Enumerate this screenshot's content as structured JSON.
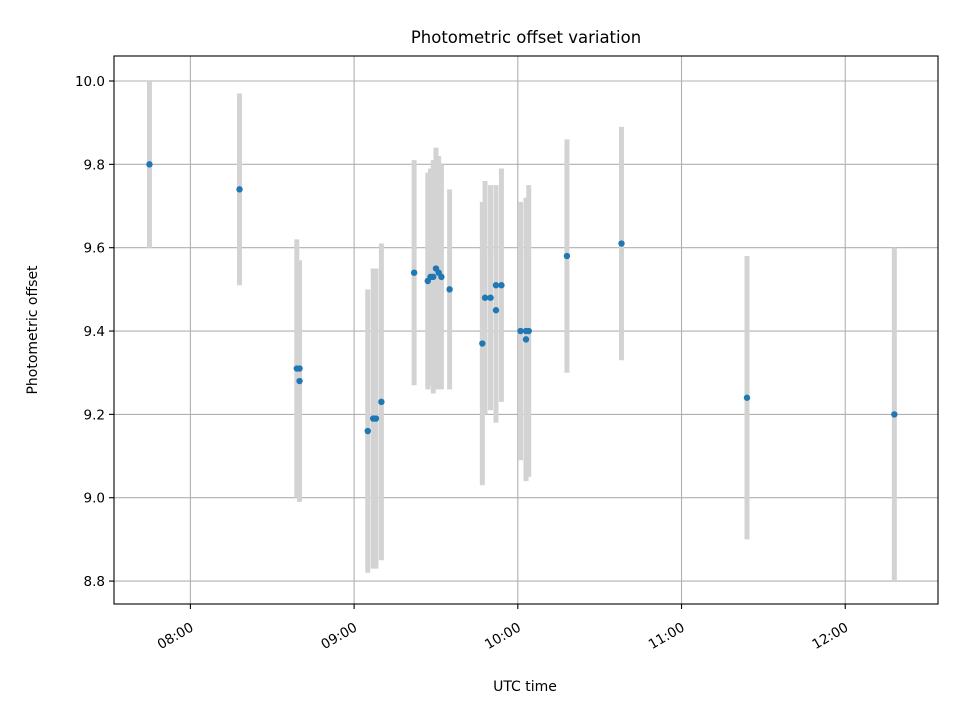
{
  "chart_data": {
    "type": "scatter",
    "title": "Photometric offset variation",
    "xlabel": "UTC time",
    "ylabel": "Photometric offset",
    "grid": true,
    "x_unit": "UTC time (HH:MM)",
    "xlim": [
      "07:32",
      "12:34"
    ],
    "ylim": [
      8.745,
      10.06
    ],
    "x_ticks": [
      "08:00",
      "09:00",
      "10:00",
      "11:00",
      "12:00"
    ],
    "y_ticks": [
      8.8,
      9.0,
      9.2,
      9.4,
      9.6,
      9.8,
      10.0
    ],
    "y_tick_labels": [
      "8.8",
      "9.0",
      "9.2",
      "9.4",
      "9.6",
      "9.8",
      "10.0"
    ],
    "point_color": "#1f77b4",
    "errorbar_color": "#d3d3d3",
    "points": [
      {
        "x": "07:45",
        "y": 9.8,
        "err": 0.2
      },
      {
        "x": "08:18",
        "y": 9.74,
        "err": 0.23
      },
      {
        "x": "08:39",
        "y": 9.31,
        "err": 0.31
      },
      {
        "x": "08:40",
        "y": 9.31,
        "err": 0.25
      },
      {
        "x": "08:40",
        "y": 9.28,
        "err": 0.29
      },
      {
        "x": "09:05",
        "y": 9.16,
        "err": 0.34
      },
      {
        "x": "09:07",
        "y": 9.19,
        "err": 0.36
      },
      {
        "x": "09:08",
        "y": 9.19,
        "err": 0.36
      },
      {
        "x": "09:10",
        "y": 9.23,
        "err": 0.38
      },
      {
        "x": "09:22",
        "y": 9.54,
        "err": 0.27
      },
      {
        "x": "09:27",
        "y": 9.52,
        "err": 0.26
      },
      {
        "x": "09:28",
        "y": 9.53,
        "err": 0.26
      },
      {
        "x": "09:29",
        "y": 9.53,
        "err": 0.28
      },
      {
        "x": "09:30",
        "y": 9.55,
        "err": 0.29
      },
      {
        "x": "09:31",
        "y": 9.54,
        "err": 0.28
      },
      {
        "x": "09:32",
        "y": 9.53,
        "err": 0.27
      },
      {
        "x": "09:35",
        "y": 9.5,
        "err": 0.24
      },
      {
        "x": "09:47",
        "y": 9.37,
        "err": 0.34
      },
      {
        "x": "09:48",
        "y": 9.48,
        "err": 0.28
      },
      {
        "x": "09:50",
        "y": 9.48,
        "err": 0.27
      },
      {
        "x": "09:52",
        "y": 9.51,
        "err": 0.24
      },
      {
        "x": "09:52",
        "y": 9.45,
        "err": 0.27
      },
      {
        "x": "09:54",
        "y": 9.51,
        "err": 0.28
      },
      {
        "x": "10:01",
        "y": 9.4,
        "err": 0.31
      },
      {
        "x": "10:03",
        "y": 9.4,
        "err": 0.31
      },
      {
        "x": "10:03",
        "y": 9.38,
        "err": 0.34
      },
      {
        "x": "10:04",
        "y": 9.4,
        "err": 0.35
      },
      {
        "x": "10:18",
        "y": 9.58,
        "err": 0.28
      },
      {
        "x": "10:38",
        "y": 9.61,
        "err": 0.28
      },
      {
        "x": "11:24",
        "y": 9.24,
        "err": 0.34
      },
      {
        "x": "12:18",
        "y": 9.2,
        "err": 0.4
      }
    ]
  }
}
